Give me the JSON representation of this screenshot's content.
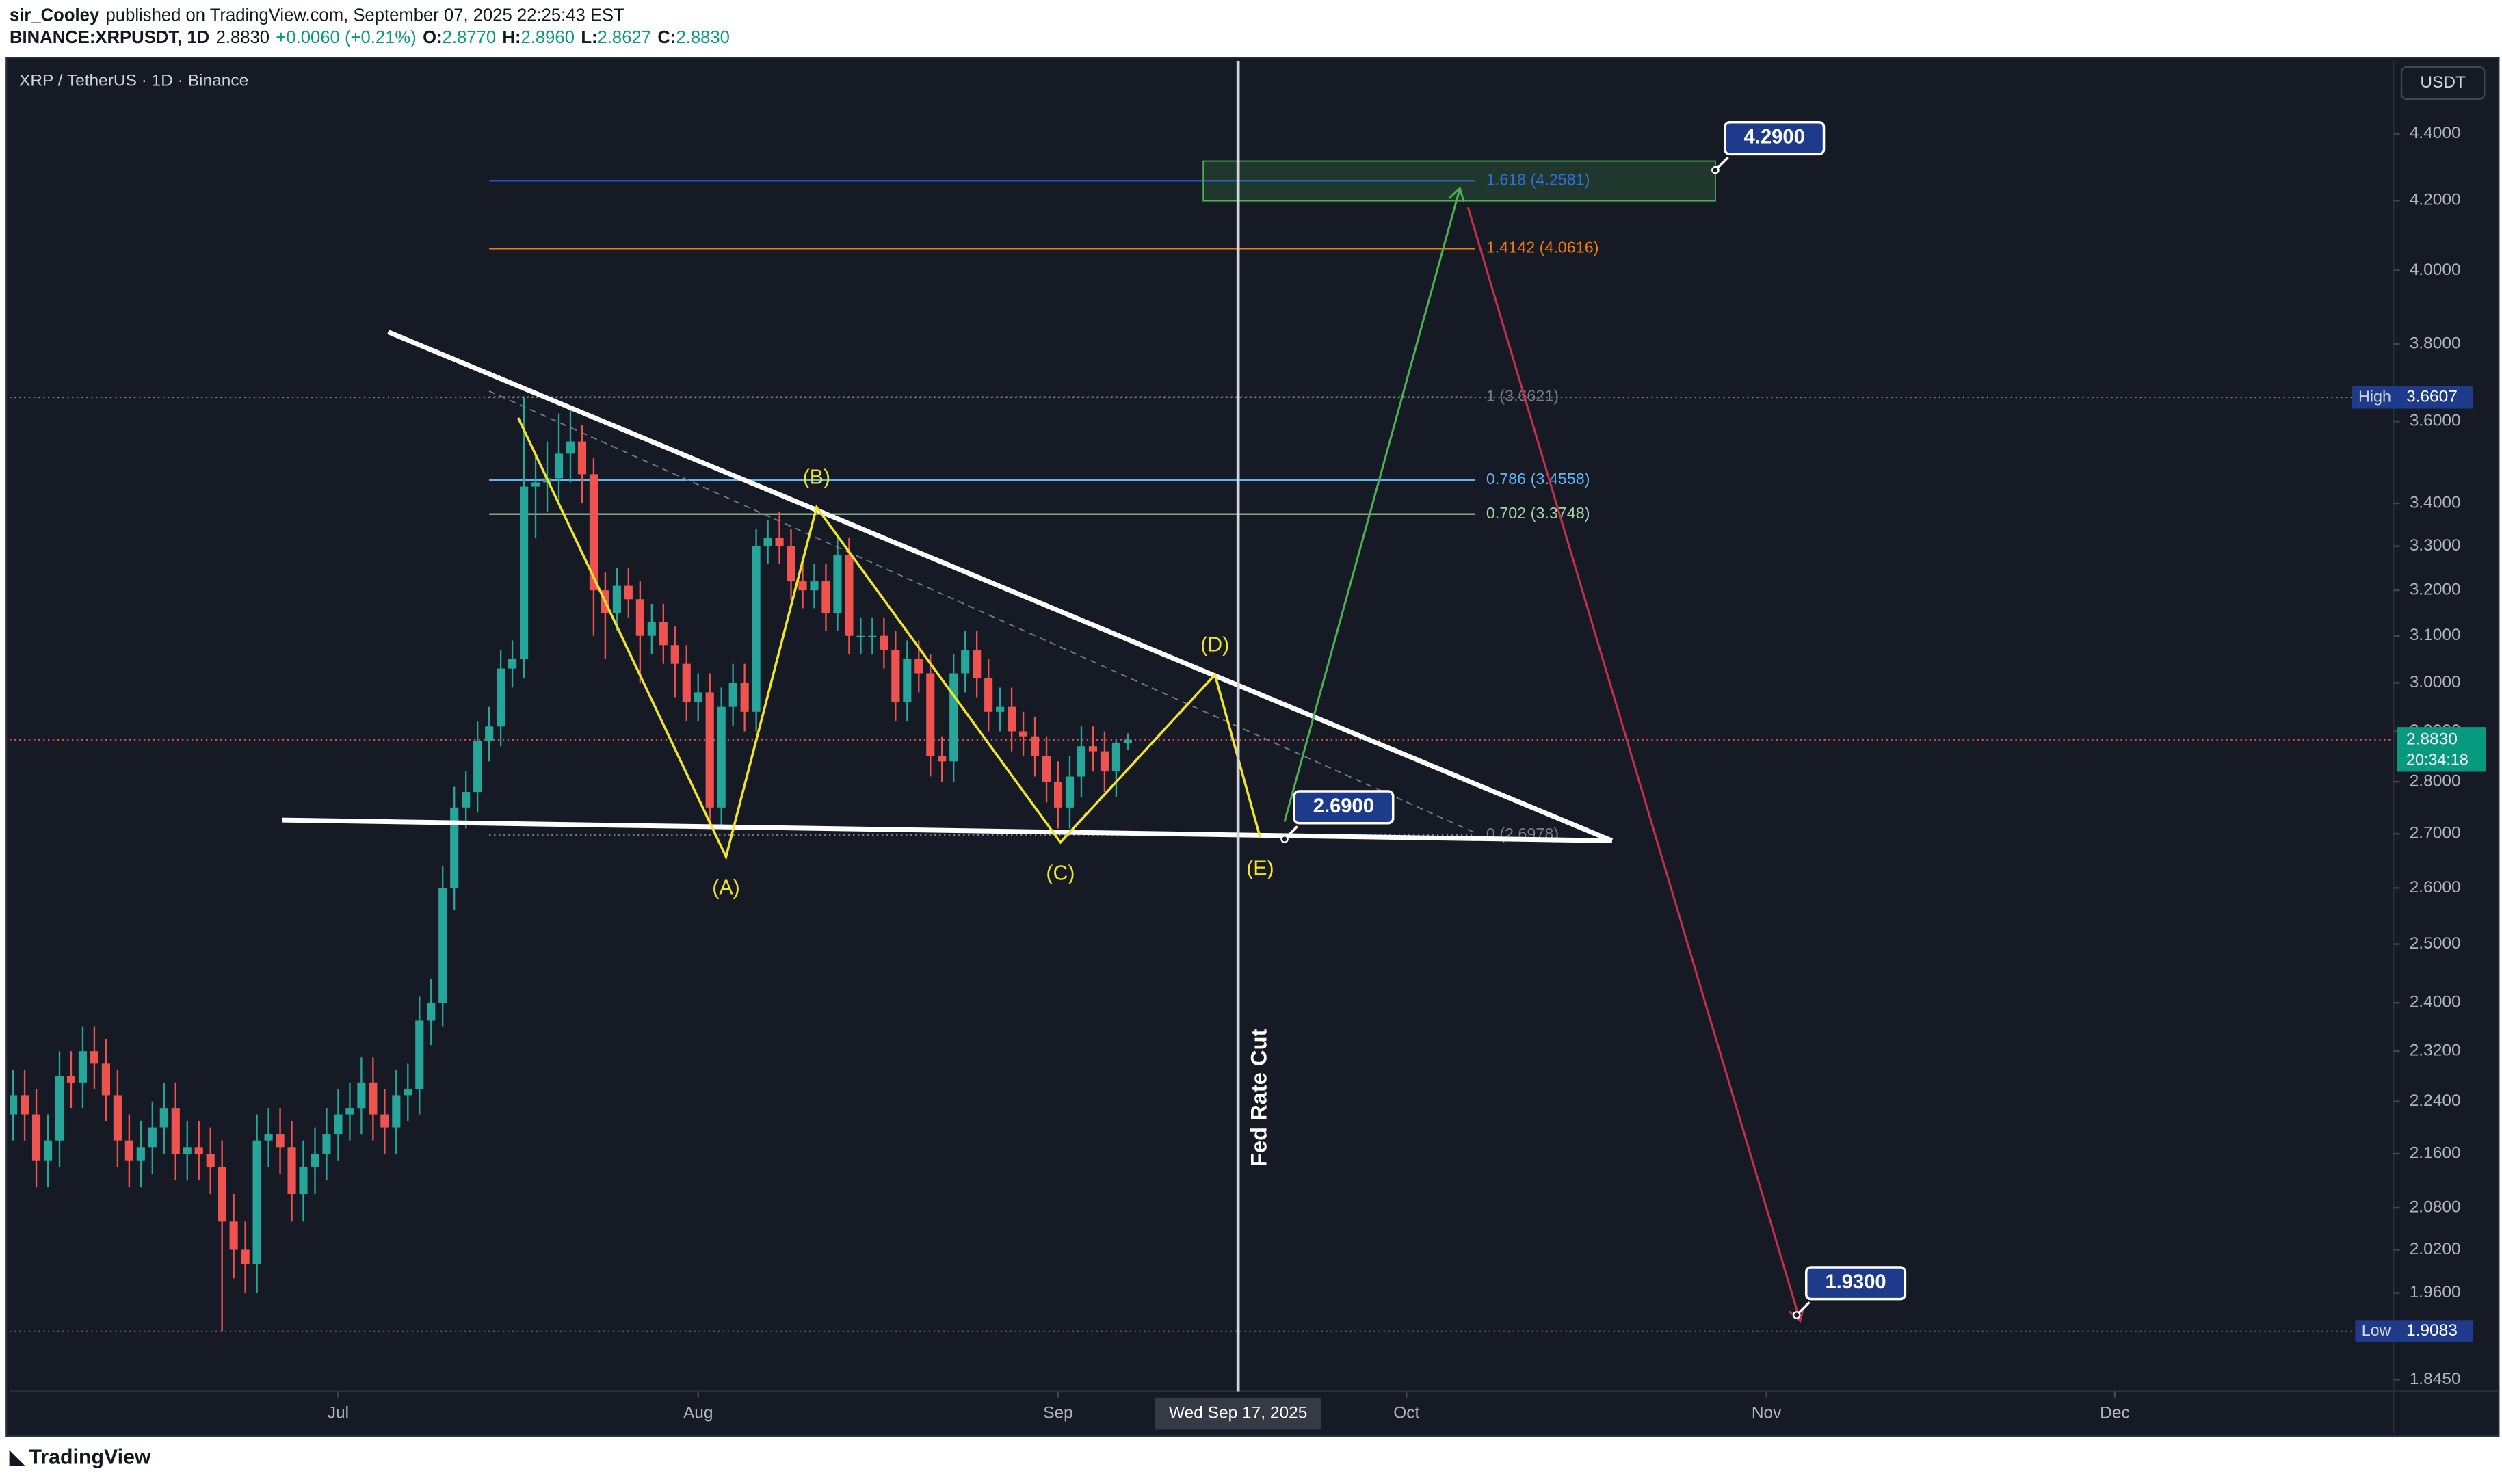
{
  "header": {
    "author": "sir_Cooley",
    "published": "published on TradingView.com, September 07, 2025 22:25:43 EST",
    "symbol": "BINANCE:XRPUSDT, 1D",
    "last": "2.8830",
    "change": "+0.0060 (+0.21%)",
    "ohlc": [
      {
        "key": "O:",
        "value": "2.8770"
      },
      {
        "key": "H:",
        "value": "2.8960"
      },
      {
        "key": "L:",
        "value": "2.8627"
      },
      {
        "key": "C:",
        "value": "2.8830"
      }
    ]
  },
  "footer": {
    "brand": "TradingView"
  },
  "chart_data": {
    "type": "candlestick",
    "title": "XRP / TetherUS · 1D · Binance",
    "currency": "USDT",
    "log_scale": true,
    "grid": false,
    "colors": {
      "up": "#26a69a",
      "down": "#ef5350"
    },
    "open": [
      2.22,
      2.25,
      2.22,
      2.15,
      2.18,
      2.28,
      2.27,
      2.32,
      2.3,
      2.25,
      2.18,
      2.15,
      2.17,
      2.2,
      2.23,
      2.16,
      2.17,
      2.16,
      2.14,
      2.06,
      2.02,
      2.0,
      2.18,
      2.19,
      2.17,
      2.1,
      2.14,
      2.16,
      2.19,
      2.22,
      2.23,
      2.27,
      2.22,
      2.2,
      2.25,
      2.26,
      2.37,
      2.4,
      2.6,
      2.75,
      2.78,
      2.88,
      2.91,
      3.03,
      3.05,
      3.44,
      3.45,
      3.46,
      3.52,
      3.55,
      3.47,
      3.2,
      3.15,
      3.21,
      3.18,
      3.1,
      3.13,
      3.08,
      3.04,
      2.96,
      2.98,
      2.75,
      2.95,
      3.0,
      2.94,
      3.3,
      3.32,
      3.3,
      3.22,
      3.2,
      3.22,
      3.15,
      3.28,
      3.1,
      3.1,
      3.1,
      3.07,
      2.96,
      3.05,
      3.02,
      2.85,
      2.84,
      3.02,
      3.07,
      3.01,
      2.94,
      2.95,
      2.9,
      2.89,
      2.85,
      2.8,
      2.75,
      2.81,
      2.87,
      2.86,
      2.82,
      2.877
    ],
    "high": [
      2.29,
      2.29,
      2.26,
      2.22,
      2.32,
      2.32,
      2.36,
      2.36,
      2.34,
      2.29,
      2.22,
      2.21,
      2.24,
      2.27,
      2.27,
      2.21,
      2.21,
      2.2,
      2.18,
      2.1,
      2.06,
      2.22,
      2.23,
      2.23,
      2.21,
      2.18,
      2.2,
      2.23,
      2.26,
      2.27,
      2.31,
      2.31,
      2.26,
      2.29,
      2.3,
      2.41,
      2.44,
      2.64,
      2.79,
      2.82,
      2.92,
      2.95,
      3.07,
      3.09,
      3.6607,
      3.52,
      3.55,
      3.62,
      3.64,
      3.59,
      3.51,
      3.24,
      3.25,
      3.25,
      3.22,
      3.17,
      3.17,
      3.12,
      3.08,
      3.02,
      3.02,
      2.99,
      3.04,
      3.04,
      3.34,
      3.36,
      3.38,
      3.34,
      3.26,
      3.26,
      3.26,
      3.32,
      3.32,
      3.14,
      3.14,
      3.14,
      3.11,
      3.09,
      3.09,
      3.06,
      2.89,
      3.06,
      3.11,
      3.11,
      3.05,
      2.99,
      2.99,
      2.94,
      2.93,
      2.89,
      2.84,
      2.85,
      2.91,
      2.91,
      2.9,
      2.88,
      2.896
    ],
    "low": [
      2.18,
      2.18,
      2.11,
      2.11,
      2.14,
      2.23,
      2.23,
      2.26,
      2.21,
      2.14,
      2.11,
      2.11,
      2.13,
      2.16,
      2.12,
      2.12,
      2.12,
      2.1,
      1.9083,
      1.98,
      1.96,
      1.96,
      2.14,
      2.13,
      2.06,
      2.06,
      2.1,
      2.12,
      2.15,
      2.18,
      2.19,
      2.18,
      2.16,
      2.16,
      2.21,
      2.22,
      2.33,
      2.36,
      2.56,
      2.71,
      2.74,
      2.84,
      2.87,
      2.99,
      3.01,
      3.32,
      3.38,
      3.4,
      3.45,
      3.4,
      3.1,
      3.05,
      3.11,
      3.14,
      3.0,
      3.06,
      3.04,
      2.97,
      2.92,
      2.92,
      2.71,
      2.71,
      2.91,
      2.9,
      2.9,
      3.26,
      3.26,
      3.18,
      3.16,
      3.16,
      3.11,
      3.11,
      3.06,
      3.06,
      3.06,
      3.03,
      2.92,
      2.92,
      2.98,
      2.81,
      2.8,
      2.8,
      2.98,
      2.97,
      2.9,
      2.9,
      2.86,
      2.85,
      2.81,
      2.76,
      2.71,
      2.71,
      2.77,
      2.82,
      2.78,
      2.77,
      2.8627
    ],
    "close": [
      2.25,
      2.22,
      2.15,
      2.18,
      2.28,
      2.27,
      2.32,
      2.3,
      2.25,
      2.18,
      2.15,
      2.17,
      2.2,
      2.23,
      2.16,
      2.17,
      2.16,
      2.14,
      2.06,
      2.02,
      2.0,
      2.18,
      2.19,
      2.17,
      2.1,
      2.14,
      2.16,
      2.19,
      2.22,
      2.23,
      2.27,
      2.22,
      2.2,
      2.25,
      2.26,
      2.37,
      2.4,
      2.6,
      2.75,
      2.78,
      2.88,
      2.91,
      3.03,
      3.05,
      3.44,
      3.45,
      3.46,
      3.52,
      3.55,
      3.47,
      3.2,
      3.15,
      3.21,
      3.18,
      3.1,
      3.13,
      3.08,
      3.04,
      2.96,
      2.98,
      2.75,
      2.95,
      3.0,
      2.94,
      3.3,
      3.32,
      3.3,
      3.22,
      3.2,
      3.22,
      3.15,
      3.28,
      3.1,
      3.1,
      3.1,
      3.07,
      2.96,
      3.05,
      3.02,
      2.85,
      2.84,
      3.02,
      3.07,
      3.01,
      2.94,
      2.95,
      2.9,
      2.89,
      2.85,
      2.8,
      2.75,
      2.81,
      2.87,
      2.86,
      2.82,
      2.877,
      2.883
    ],
    "xlim": [
      -0.3,
      205
    ],
    "xticks": [
      {
        "value": 28,
        "label": "Jul"
      },
      {
        "value": 59,
        "label": "Aug"
      },
      {
        "value": 90,
        "label": "Sep"
      },
      {
        "value": 120,
        "label": "Oct"
      },
      {
        "value": 151,
        "label": "Nov"
      },
      {
        "value": 181,
        "label": "Dec"
      }
    ],
    "ylim": [
      1.83,
      4.63
    ],
    "yticks": [
      {
        "value": 4.4,
        "label": "4.4000"
      },
      {
        "value": 4.2,
        "label": "4.2000"
      },
      {
        "value": 4,
        "label": "4.0000"
      },
      {
        "value": 3.8,
        "label": "3.8000"
      },
      {
        "value": 3.6,
        "label": "3.6000"
      },
      {
        "value": 3.4,
        "label": "3.4000"
      },
      {
        "value": 3.3,
        "label": "3.3000"
      },
      {
        "value": 3.2,
        "label": "3.2000"
      },
      {
        "value": 3.1,
        "label": "3.1000"
      },
      {
        "value": 3,
        "label": "3.0000"
      },
      {
        "value": 2.9,
        "label": "2.9000"
      },
      {
        "value": 2.8,
        "label": "2.8000"
      },
      {
        "value": 2.7,
        "label": "2.7000"
      },
      {
        "value": 2.6,
        "label": "2.6000"
      },
      {
        "value": 2.5,
        "label": "2.5000"
      },
      {
        "value": 2.4,
        "label": "2.4000"
      },
      {
        "value": 2.32,
        "label": "2.3200"
      },
      {
        "value": 2.24,
        "label": "2.2400"
      },
      {
        "value": 2.16,
        "label": "2.1600"
      },
      {
        "value": 2.08,
        "label": "2.0800"
      },
      {
        "value": 2.02,
        "label": "2.0200"
      },
      {
        "value": 1.96,
        "label": "1.9600"
      },
      {
        "value": 1.845,
        "label": "1.8450"
      }
    ],
    "high_tag": {
      "label": "High",
      "value": 3.6607,
      "value_label": "3.6607"
    },
    "low_tag": {
      "label": "Low",
      "value": 1.9083,
      "value_label": "1.9083"
    },
    "last_tag": {
      "value": 2.883,
      "value_label": "2.8830",
      "countdown": "20:34:18"
    },
    "fib": {
      "x": [
        41.0,
        125.9
      ],
      "trend": [
        [
          41.0,
          3.677
        ],
        [
          125.9,
          2.702
        ]
      ],
      "levels": [
        {
          "label": "1.618 (4.2581)",
          "value": 4.2581,
          "color": "#2962ff"
        },
        {
          "label": "1.4142 (4.0616)",
          "value": 4.0616,
          "color": "#f57c00"
        },
        {
          "label": "1 (3.6621)",
          "value": 3.6621,
          "color": "#787b86"
        },
        {
          "label": "0.786 (3.4558)",
          "value": 3.4558,
          "color": "#64b5f6"
        },
        {
          "label": "0.702 (3.3748)",
          "value": 3.3748,
          "color": "#a5d6a7"
        },
        {
          "label": "0 (2.6978)",
          "value": 2.6978,
          "color": "#787b86"
        }
      ]
    },
    "trendlines": [
      [
        [
          32.3,
          3.832
        ],
        [
          137.7,
          2.687
        ]
      ],
      [
        [
          23.2,
          2.726
        ],
        [
          137.7,
          2.687
        ]
      ]
    ],
    "wave": [
      {
        "point": [
          43.5,
          3.609
        ]
      },
      {
        "point": [
          61.4,
          2.657
        ],
        "label": "(A)"
      },
      {
        "point": [
          69.2,
          3.391
        ],
        "label": "(B)"
      },
      {
        "point": [
          90.2,
          2.684
        ],
        "label": "(C)"
      },
      {
        "point": [
          103.5,
          3.017
        ],
        "label": "(D)"
      },
      {
        "point": [
          107.4,
          2.693
        ],
        "label": "(E)"
      }
    ],
    "target_box": {
      "x": [
        102.5,
        146.6
      ],
      "y": [
        4.199,
        4.317
      ]
    },
    "arrows": [
      {
        "color": "#4caf50",
        "points": [
          [
            109.5,
            2.723
          ],
          [
            124.6,
            4.236
          ]
        ]
      },
      {
        "color": "#c2314a",
        "points": [
          [
            125.3,
            4.18
          ],
          [
            153.9,
            1.922
          ]
        ]
      }
    ],
    "price_labels": [
      {
        "x": 146.6,
        "value": 4.29,
        "label": "4.2900"
      },
      {
        "x": 109.5,
        "value": 2.69,
        "label": "2.6900"
      },
      {
        "x": 153.6,
        "value": 1.93,
        "label": "1.9300"
      }
    ],
    "event": {
      "x": 105.5,
      "label": "Fed Rate Cut",
      "date_label": "Wed Sep 17, 2025"
    }
  }
}
